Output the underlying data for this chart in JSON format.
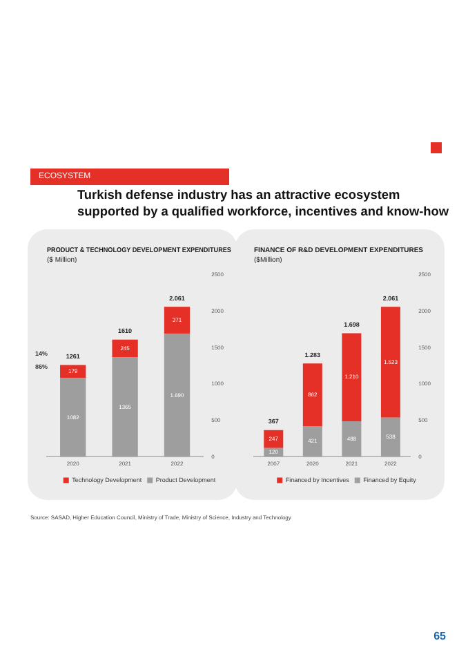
{
  "chart_data": [
    {
      "type": "bar",
      "title": "PRODUCT & TECHNOLOGY DEVELOPMENT EXPENDITURES",
      "subtitle": "($ Million)",
      "categories": [
        "2020",
        "2021",
        "2022"
      ],
      "stacked": true,
      "series": [
        {
          "name": "Product Development",
          "color": "#9e9e9e",
          "values": [
            1082,
            1365,
            1690
          ],
          "value_labels": [
            "1082",
            "1365",
            "1.690"
          ]
        },
        {
          "name": "Technology Development",
          "color": "#e53027",
          "values": [
            179,
            245,
            371
          ],
          "value_labels": [
            "179",
            "245",
            "371"
          ]
        }
      ],
      "totals": [
        "1261",
        "1610",
        "2.061"
      ],
      "ylim": [
        0,
        2500
      ],
      "yticks": [
        0,
        500,
        1000,
        1500,
        2000,
        2500
      ],
      "grid": false,
      "legend": "bottom",
      "annotations": [
        "ECOSYSTEM",
        "Turkish defense industry has an attractive ecosystem supported by a qualified workforce, incentives and know-how",
        "14%",
        "86%",
        "Source: SASAD, Higher Education Council, Ministry of Trade, Ministry of Science, Industry and Technology",
        "65"
      ]
    },
    {
      "type": "bar",
      "title": "FINANCE OF R&D DEVELOPMENT EXPENDITURES",
      "subtitle": "($Million)",
      "categories": [
        "2007",
        "2020",
        "2021",
        "2022"
      ],
      "stacked": true,
      "series": [
        {
          "name": "Financed by Equity",
          "color": "#9e9e9e",
          "values": [
            120,
            421,
            488,
            538
          ],
          "value_labels": [
            "120",
            "421",
            "488",
            "538"
          ]
        },
        {
          "name": "Financed by Incentives",
          "color": "#e53027",
          "values": [
            247,
            862,
            1210,
            1523
          ],
          "value_labels": [
            "247",
            "862",
            "1.210",
            "1.523"
          ]
        }
      ],
      "totals": [
        "367",
        "1.283",
        "1.698",
        "2.061"
      ],
      "ylim": [
        0,
        2500
      ],
      "yticks": [
        0,
        500,
        1000,
        1500,
        2000,
        2500
      ],
      "grid": false,
      "legend": "bottom"
    }
  ]
}
